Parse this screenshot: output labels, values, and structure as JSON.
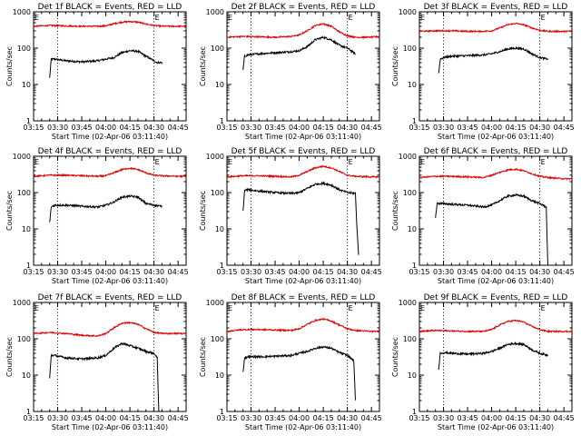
{
  "figure": {
    "xlabel": "Start Time (02-Apr-06 03:11:40)",
    "ylabel": "Counts/sec",
    "x_tick_labels": [
      "03:15",
      "03:30",
      "03:45",
      "04:00",
      "04:15",
      "04:30",
      "04:45"
    ],
    "y_tick_labels": [
      "1",
      "10",
      "100",
      "1000"
    ],
    "marker_label": "E",
    "colors": {
      "events": "#000000",
      "lld": "#dd0000",
      "axes": "#000000",
      "background": "#ffffff"
    }
  },
  "chart_data": [
    {
      "type": "line",
      "title": "Det 1f BLACK = Events, RED = LLD",
      "xlabel": "Start Time (02-Apr-06 03:11:40)",
      "ylabel": "Counts/sec",
      "x_unit": "minutes after 03:15",
      "xlim": [
        0,
        95
      ],
      "ylim": [
        1,
        1000
      ],
      "y_scale": "log",
      "vlines": [
        15,
        75
      ],
      "markers": [
        0,
        75
      ],
      "series": [
        {
          "name": "Events",
          "color": "#000000",
          "x": [
            10,
            11,
            13,
            20,
            30,
            40,
            45,
            50,
            55,
            60,
            65,
            70,
            75,
            77,
            80
          ],
          "y": [
            15,
            50,
            50,
            45,
            42,
            45,
            50,
            55,
            75,
            85,
            82,
            60,
            45,
            40,
            40
          ]
        },
        {
          "name": "LLD",
          "color": "#dd0000",
          "x": [
            0,
            10,
            20,
            30,
            40,
            45,
            50,
            55,
            60,
            65,
            70,
            75,
            80,
            90,
            95
          ],
          "y": [
            400,
            420,
            410,
            400,
            400,
            410,
            470,
            520,
            540,
            520,
            460,
            420,
            400,
            400,
            400
          ]
        }
      ]
    },
    {
      "type": "line",
      "title": "Det 2f BLACK = Events, RED = LLD",
      "xlabel": "Start Time (02-Apr-06 03:11:40)",
      "ylabel": "Counts/sec",
      "x_unit": "minutes after 03:15",
      "xlim": [
        0,
        95
      ],
      "ylim": [
        1,
        1000
      ],
      "y_scale": "log",
      "vlines": [
        15,
        75
      ],
      "markers": [
        0,
        75
      ],
      "series": [
        {
          "name": "Events",
          "color": "#000000",
          "x": [
            10,
            11,
            13,
            20,
            30,
            40,
            45,
            50,
            55,
            60,
            65,
            70,
            75,
            80
          ],
          "y": [
            25,
            60,
            65,
            70,
            75,
            80,
            85,
            110,
            170,
            200,
            170,
            120,
            100,
            70
          ]
        },
        {
          "name": "LLD",
          "color": "#dd0000",
          "x": [
            0,
            10,
            20,
            30,
            40,
            45,
            50,
            55,
            60,
            65,
            70,
            75,
            80,
            90,
            95
          ],
          "y": [
            200,
            210,
            205,
            200,
            210,
            230,
            300,
            420,
            470,
            400,
            280,
            220,
            200,
            200,
            210
          ]
        }
      ]
    },
    {
      "type": "line",
      "title": "Det 3f BLACK = Events, RED = LLD",
      "xlabel": "Start Time (02-Apr-06 03:11:40)",
      "ylabel": "Counts/sec",
      "x_unit": "minutes after 03:15",
      "xlim": [
        0,
        95
      ],
      "ylim": [
        1,
        1000
      ],
      "y_scale": "log",
      "vlines": [
        15,
        75
      ],
      "markers": [
        0,
        75
      ],
      "series": [
        {
          "name": "Events",
          "color": "#000000",
          "x": [
            12,
            13,
            15,
            20,
            30,
            40,
            45,
            50,
            55,
            60,
            65,
            70,
            75,
            80
          ],
          "y": [
            20,
            50,
            55,
            60,
            62,
            65,
            70,
            80,
            95,
            100,
            95,
            70,
            55,
            50
          ]
        },
        {
          "name": "LLD",
          "color": "#dd0000",
          "x": [
            0,
            10,
            20,
            30,
            40,
            45,
            50,
            55,
            60,
            65,
            70,
            75,
            80,
            90,
            95
          ],
          "y": [
            290,
            300,
            300,
            290,
            290,
            300,
            360,
            440,
            480,
            440,
            360,
            310,
            290,
            290,
            290
          ]
        }
      ]
    },
    {
      "type": "line",
      "title": "Det 4f BLACK = Events, RED = LLD",
      "xlabel": "Start Time (02-Apr-06 03:11:40)",
      "ylabel": "Counts/sec",
      "x_unit": "minutes after 03:15",
      "xlim": [
        0,
        95
      ],
      "ylim": [
        1,
        1000
      ],
      "y_scale": "log",
      "vlines": [
        15,
        75
      ],
      "markers": [
        0,
        75
      ],
      "series": [
        {
          "name": "Events",
          "color": "#000000",
          "x": [
            10,
            11,
            13,
            20,
            30,
            40,
            45,
            50,
            55,
            60,
            65,
            70,
            75,
            80
          ],
          "y": [
            15,
            40,
            45,
            45,
            42,
            40,
            45,
            55,
            75,
            80,
            75,
            50,
            45,
            42
          ]
        },
        {
          "name": "LLD",
          "color": "#dd0000",
          "x": [
            0,
            10,
            20,
            30,
            40,
            45,
            50,
            55,
            60,
            65,
            70,
            75,
            80,
            90,
            95
          ],
          "y": [
            280,
            300,
            300,
            290,
            280,
            290,
            350,
            430,
            470,
            430,
            350,
            300,
            290,
            280,
            280
          ]
        }
      ]
    },
    {
      "type": "line",
      "title": "Det 5f BLACK = Events, RED = LLD",
      "xlabel": "Start Time (02-Apr-06 03:11:40)",
      "ylabel": "Counts/sec",
      "x_unit": "minutes after 03:15",
      "xlim": [
        0,
        95
      ],
      "ylim": [
        1,
        1000
      ],
      "y_scale": "log",
      "vlines": [
        15,
        75
      ],
      "markers": [
        0,
        75
      ],
      "series": [
        {
          "name": "Events",
          "color": "#000000",
          "x": [
            10,
            11,
            13,
            20,
            30,
            40,
            45,
            50,
            55,
            60,
            65,
            70,
            75,
            80,
            81,
            82
          ],
          "y": [
            30,
            115,
            120,
            110,
            100,
            95,
            100,
            130,
            170,
            180,
            160,
            120,
            100,
            95,
            10,
            2
          ]
        },
        {
          "name": "LLD",
          "color": "#dd0000",
          "x": [
            0,
            10,
            20,
            30,
            40,
            45,
            50,
            55,
            60,
            65,
            70,
            75,
            80,
            90,
            95
          ],
          "y": [
            270,
            290,
            290,
            280,
            270,
            300,
            380,
            480,
            530,
            480,
            380,
            300,
            280,
            270,
            270
          ]
        }
      ]
    },
    {
      "type": "line",
      "title": "Det 6f BLACK = Events, RED = LLD",
      "xlabel": "Start Time (02-Apr-06 03:11:40)",
      "ylabel": "Counts/sec",
      "x_unit": "minutes after 03:15",
      "xlim": [
        0,
        95
      ],
      "ylim": [
        1,
        1000
      ],
      "y_scale": "log",
      "vlines": [
        15,
        75
      ],
      "markers": [
        0,
        75
      ],
      "series": [
        {
          "name": "Events",
          "color": "#000000",
          "x": [
            10,
            11,
            13,
            20,
            30,
            40,
            45,
            50,
            55,
            60,
            65,
            70,
            75,
            79,
            80
          ],
          "y": [
            20,
            50,
            50,
            48,
            45,
            40,
            45,
            60,
            80,
            85,
            80,
            60,
            50,
            40,
            1
          ]
        },
        {
          "name": "LLD",
          "color": "#dd0000",
          "x": [
            0,
            10,
            20,
            30,
            40,
            45,
            50,
            55,
            60,
            65,
            70,
            75,
            80,
            90,
            95
          ],
          "y": [
            260,
            280,
            280,
            270,
            260,
            300,
            360,
            420,
            440,
            400,
            330,
            280,
            260,
            240,
            240
          ]
        }
      ]
    },
    {
      "type": "line",
      "title": "Det 7f BLACK = Events, RED = LLD",
      "xlabel": "Start Time (02-Apr-06 03:11:40)",
      "ylabel": "Counts/sec",
      "x_unit": "minutes after 03:15",
      "xlim": [
        0,
        95
      ],
      "ylim": [
        1,
        1000
      ],
      "y_scale": "log",
      "vlines": [
        15,
        75
      ],
      "markers": [
        0,
        75
      ],
      "series": [
        {
          "name": "Events",
          "color": "#000000",
          "x": [
            10,
            11,
            13,
            20,
            30,
            40,
            45,
            50,
            55,
            60,
            65,
            70,
            75,
            77,
            78
          ],
          "y": [
            8,
            35,
            35,
            30,
            28,
            30,
            35,
            55,
            75,
            65,
            55,
            45,
            40,
            30,
            1
          ]
        },
        {
          "name": "LLD",
          "color": "#dd0000",
          "x": [
            0,
            10,
            20,
            30,
            40,
            45,
            50,
            55,
            60,
            65,
            70,
            75,
            80,
            90,
            95
          ],
          "y": [
            140,
            150,
            140,
            125,
            120,
            140,
            200,
            270,
            280,
            250,
            190,
            150,
            140,
            140,
            140
          ]
        }
      ]
    },
    {
      "type": "line",
      "title": "Det 8f BLACK = Events, RED = LLD",
      "xlabel": "Start Time (02-Apr-06 03:11:40)",
      "ylabel": "Counts/sec",
      "x_unit": "minutes after 03:15",
      "xlim": [
        0,
        95
      ],
      "ylim": [
        1,
        1000
      ],
      "y_scale": "log",
      "vlines": [
        15,
        75
      ],
      "markers": [
        0,
        75
      ],
      "series": [
        {
          "name": "Events",
          "color": "#000000",
          "x": [
            10,
            11,
            13,
            20,
            30,
            40,
            45,
            50,
            55,
            60,
            65,
            70,
            75,
            79,
            80
          ],
          "y": [
            12,
            30,
            32,
            32,
            33,
            35,
            40,
            45,
            55,
            60,
            55,
            42,
            35,
            25,
            2
          ]
        },
        {
          "name": "LLD",
          "color": "#dd0000",
          "x": [
            0,
            10,
            20,
            30,
            40,
            45,
            50,
            55,
            60,
            65,
            70,
            75,
            80,
            90,
            95
          ],
          "y": [
            160,
            180,
            180,
            175,
            170,
            190,
            250,
            320,
            350,
            310,
            240,
            190,
            170,
            160,
            160
          ]
        }
      ]
    },
    {
      "type": "line",
      "title": "Det 9f BLACK = Events, RED = LLD",
      "xlabel": "Start Time (02-Apr-06 03:11:40)",
      "ylabel": "Counts/sec",
      "x_unit": "minutes after 03:15",
      "xlim": [
        0,
        95
      ],
      "ylim": [
        1,
        1000
      ],
      "y_scale": "log",
      "vlines": [
        15,
        75
      ],
      "markers": [
        0,
        75
      ],
      "series": [
        {
          "name": "Events",
          "color": "#000000",
          "x": [
            12,
            13,
            15,
            20,
            30,
            40,
            45,
            50,
            55,
            60,
            65,
            70,
            75,
            80
          ],
          "y": [
            15,
            40,
            42,
            40,
            38,
            40,
            45,
            55,
            70,
            75,
            70,
            50,
            40,
            35
          ]
        },
        {
          "name": "LLD",
          "color": "#dd0000",
          "x": [
            0,
            10,
            20,
            30,
            40,
            45,
            50,
            55,
            60,
            65,
            70,
            75,
            80,
            90,
            95
          ],
          "y": [
            160,
            170,
            165,
            160,
            160,
            180,
            240,
            300,
            320,
            290,
            220,
            180,
            160,
            160,
            160
          ]
        }
      ]
    }
  ]
}
